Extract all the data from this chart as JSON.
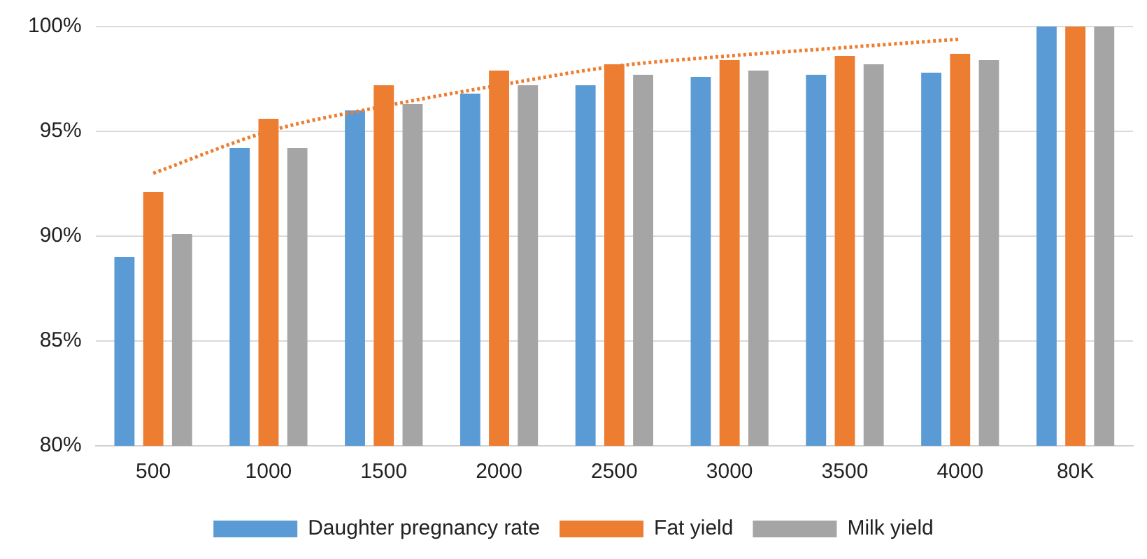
{
  "chart_data": {
    "type": "bar",
    "categories": [
      "500",
      "1000",
      "1500",
      "2000",
      "2500",
      "3000",
      "3500",
      "4000",
      "80K"
    ],
    "series": [
      {
        "name": "Daughter pregnancy rate",
        "color": "#5b9bd5",
        "values": [
          89.0,
          94.2,
          96.0,
          96.8,
          97.2,
          97.6,
          97.7,
          97.8,
          100
        ]
      },
      {
        "name": "Fat yield",
        "color": "#ed7d31",
        "values": [
          92.1,
          95.6,
          97.2,
          97.9,
          98.2,
          98.4,
          98.6,
          98.7,
          100
        ]
      },
      {
        "name": "Milk yield",
        "color": "#a5a5a5",
        "values": [
          90.1,
          94.2,
          96.3,
          97.2,
          97.7,
          97.9,
          98.2,
          98.4,
          100
        ]
      },
      {
        "type": "line",
        "color": "#ed7d31",
        "line_style": "dotted",
        "marker": "none",
        "values": [
          93.0,
          95.0,
          96.2,
          97.2,
          98.1,
          98.6,
          99.0,
          99.4,
          null
        ]
      }
    ],
    "ylim": [
      80,
      100
    ],
    "yticks": [
      {
        "value": 80,
        "label": "80%"
      },
      {
        "value": 85,
        "label": "85%"
      },
      {
        "value": 90,
        "label": "90%"
      },
      {
        "value": 95,
        "label": "95%"
      },
      {
        "value": 100,
        "label": "100%"
      }
    ],
    "grid": "y",
    "legend": "bottom"
  }
}
